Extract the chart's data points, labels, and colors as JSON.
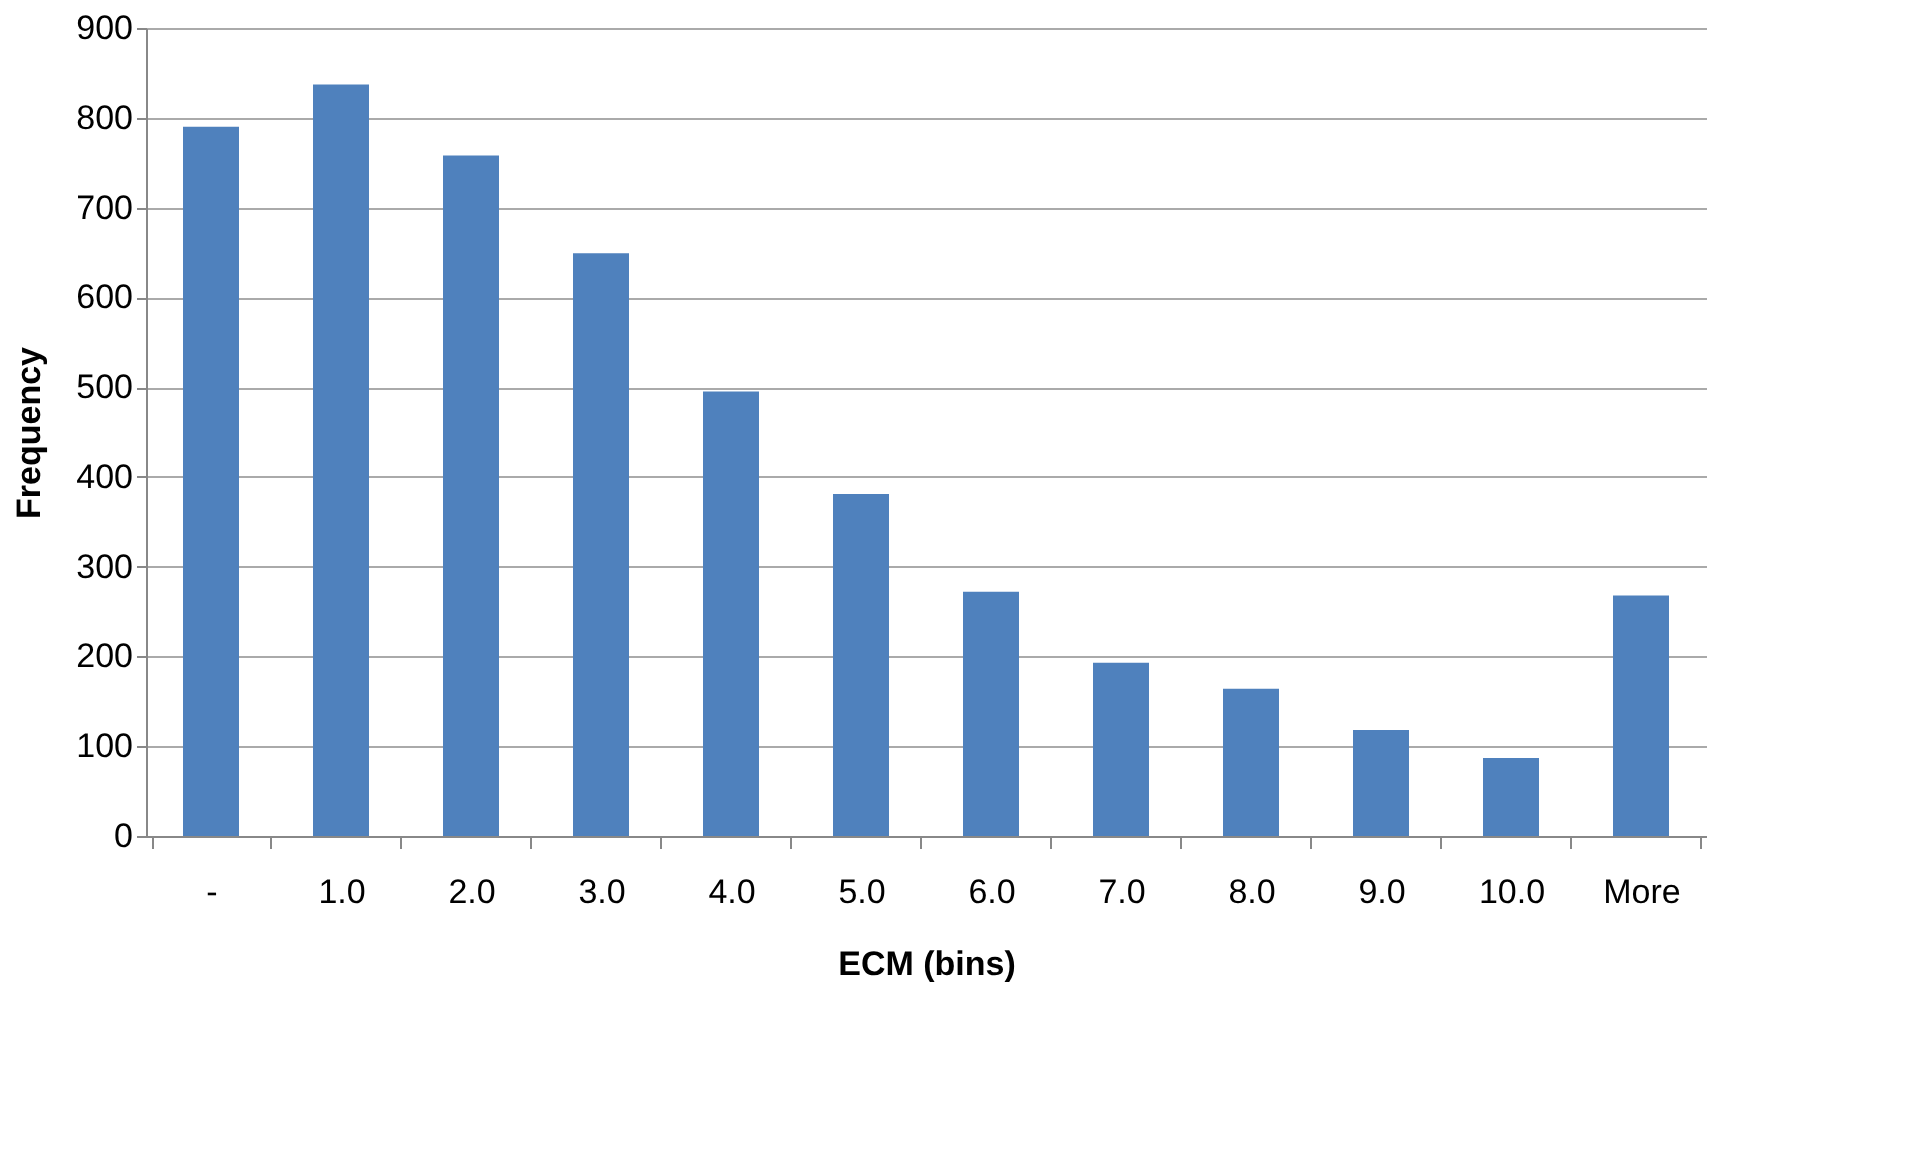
{
  "chart_data": {
    "type": "bar",
    "xlabel": "ECM (bins)",
    "ylabel": "Frequency",
    "categories": [
      "-",
      "1.0",
      "2.0",
      "3.0",
      "4.0",
      "5.0",
      "6.0",
      "7.0",
      "8.0",
      "9.0",
      "10.0",
      "More"
    ],
    "values": [
      790,
      837,
      758,
      649,
      495,
      381,
      272,
      193,
      164,
      118,
      87,
      268
    ],
    "color": "#4f81bd",
    "ylim": [
      0,
      900
    ],
    "yticks": [
      0,
      100,
      200,
      300,
      400,
      500,
      600,
      700,
      800,
      900
    ],
    "grid": "y"
  }
}
